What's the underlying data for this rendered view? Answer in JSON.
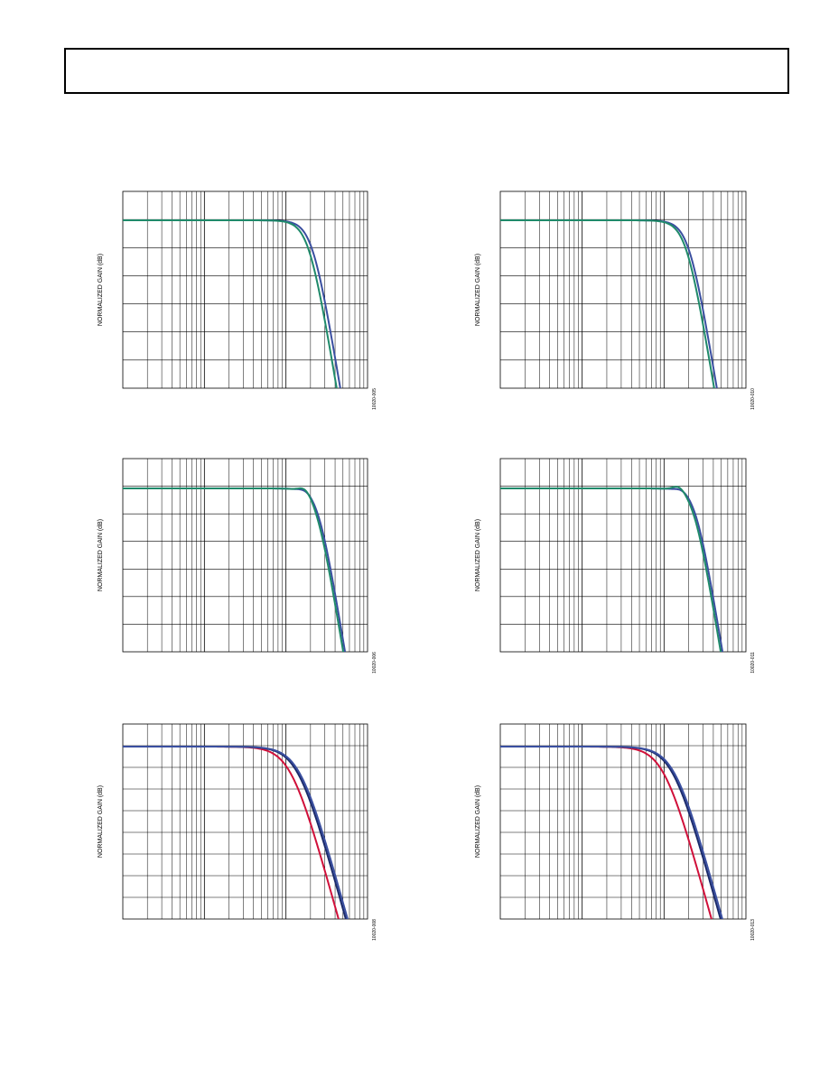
{
  "figures": [
    {
      "y_label": "NORMALIZED GAIN (dB)",
      "code": "10020-005"
    },
    {
      "y_label": "NORMALIZED GAIN (dB)",
      "code": "10020-010"
    },
    {
      "y_label": "NORMALIZED GAIN (dB)",
      "code": "10020-006"
    },
    {
      "y_label": "NORMALIZED GAIN (dB)",
      "code": "10020-011"
    },
    {
      "y_label": "NORMALIZED GAIN (dB)",
      "code": "10020-008"
    },
    {
      "y_label": "NORMALIZED GAIN (dB)",
      "code": "10020-013"
    }
  ]
}
